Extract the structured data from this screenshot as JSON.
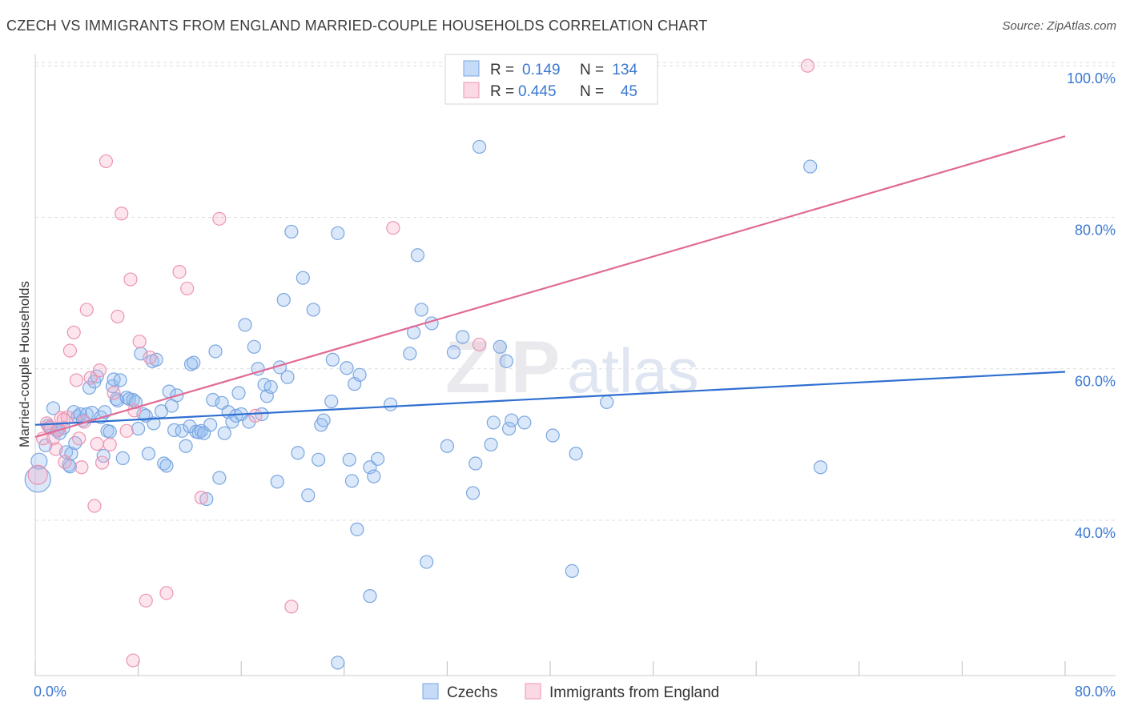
{
  "title": "CZECH VS IMMIGRANTS FROM ENGLAND MARRIED-COUPLE HOUSEHOLDS CORRELATION CHART",
  "source": "Source: ZipAtlas.com",
  "watermark": {
    "bold": "ZIP",
    "light": "atlas"
  },
  "colors": {
    "blue_fill": "rgba(150,190,240,0.35)",
    "blue_stroke": "#7aa6e0",
    "blue_line": "#2f6fd0",
    "pink_fill": "rgba(245,170,195,0.30)",
    "pink_stroke": "#ec94b2",
    "pink_line": "#e06a95",
    "tick_text": "#3b78d0",
    "grid": "#dddddd"
  },
  "chart_data": {
    "type": "scatter",
    "xlabel": "",
    "ylabel": "Married-couple Households",
    "xlim": [
      0,
      80
    ],
    "ylim": [
      19.5,
      101.5
    ],
    "x_tick_labels": [
      "0.0%",
      "80.0%"
    ],
    "y_ticks": [
      40,
      60,
      80,
      100
    ],
    "y_tick_labels": [
      "40.0%",
      "60.0%",
      "80.0%",
      "100.0%"
    ],
    "grid": "horizontal dashed",
    "legend": {
      "placement": "top-center",
      "rows": [
        {
          "r_label": "R =",
          "r_value": "0.149",
          "n_label": "N =",
          "n_value": "134"
        },
        {
          "r_label": "R =",
          "r_value": "0.445",
          "n_label": "N =",
          "n_value": "45"
        }
      ]
    },
    "series": [
      {
        "name": "Czechs",
        "trend": {
          "x": [
            0,
            80
          ],
          "y": [
            52.6,
            59.6
          ]
        },
        "points": [
          [
            0.2,
            45.4,
            16
          ],
          [
            0.3,
            47.8,
            10
          ],
          [
            0.8,
            49.9,
            8
          ],
          [
            1.0,
            52.5,
            8
          ],
          [
            1.2,
            52.2,
            8
          ],
          [
            1.4,
            54.8,
            8
          ],
          [
            1.7,
            51.8,
            8
          ],
          [
            1.9,
            51.5,
            8
          ],
          [
            2.2,
            52.2,
            8
          ],
          [
            2.4,
            49.0,
            8
          ],
          [
            2.6,
            47.3,
            8
          ],
          [
            2.7,
            47.1,
            8
          ],
          [
            2.8,
            48.8,
            8
          ],
          [
            3.0,
            54.3,
            8
          ],
          [
            3.1,
            50.2,
            8
          ],
          [
            3.3,
            53.7,
            8
          ],
          [
            3.5,
            54.0,
            8
          ],
          [
            3.7,
            53.2,
            8
          ],
          [
            4.0,
            54.0,
            8
          ],
          [
            4.2,
            57.5,
            8
          ],
          [
            4.4,
            54.2,
            8
          ],
          [
            4.6,
            58.3,
            8
          ],
          [
            4.8,
            59.0,
            8
          ],
          [
            5.1,
            53.6,
            8
          ],
          [
            5.3,
            48.5,
            8
          ],
          [
            5.4,
            54.3,
            8
          ],
          [
            5.6,
            51.8,
            8
          ],
          [
            5.8,
            51.7,
            8
          ],
          [
            6.0,
            57.7,
            8
          ],
          [
            6.1,
            58.6,
            8
          ],
          [
            6.3,
            56.0,
            8
          ],
          [
            6.4,
            55.8,
            8
          ],
          [
            6.6,
            58.5,
            8
          ],
          [
            6.8,
            48.2,
            8
          ],
          [
            7.1,
            56.2,
            8
          ],
          [
            7.3,
            56.0,
            8
          ],
          [
            7.6,
            55.9,
            8
          ],
          [
            7.8,
            55.6,
            8
          ],
          [
            8.0,
            52.1,
            8
          ],
          [
            8.2,
            62.0,
            8
          ],
          [
            8.4,
            54.0,
            8
          ],
          [
            8.6,
            53.8,
            8
          ],
          [
            8.8,
            48.8,
            8
          ],
          [
            9.1,
            61.0,
            8
          ],
          [
            9.4,
            61.2,
            8
          ],
          [
            9.2,
            52.8,
            8
          ],
          [
            9.8,
            54.4,
            8
          ],
          [
            10.0,
            47.5,
            8
          ],
          [
            10.2,
            47.2,
            8
          ],
          [
            10.4,
            57.0,
            8
          ],
          [
            10.6,
            55.1,
            8
          ],
          [
            10.8,
            51.9,
            8
          ],
          [
            11.0,
            56.5,
            8
          ],
          [
            11.4,
            51.8,
            8
          ],
          [
            11.7,
            49.8,
            8
          ],
          [
            12.0,
            52.4,
            8
          ],
          [
            12.1,
            60.6,
            8
          ],
          [
            12.3,
            60.8,
            8
          ],
          [
            12.5,
            51.7,
            8
          ],
          [
            12.7,
            51.6,
            8
          ],
          [
            12.9,
            51.8,
            8
          ],
          [
            13.1,
            51.5,
            8
          ],
          [
            13.3,
            42.8,
            8
          ],
          [
            13.6,
            52.6,
            8
          ],
          [
            13.8,
            55.9,
            8
          ],
          [
            14.0,
            62.3,
            8
          ],
          [
            14.3,
            45.6,
            8
          ],
          [
            14.5,
            55.5,
            8
          ],
          [
            14.7,
            51.5,
            8
          ],
          [
            15.0,
            54.3,
            8
          ],
          [
            15.3,
            53.0,
            8
          ],
          [
            15.6,
            53.8,
            8
          ],
          [
            15.8,
            56.8,
            8
          ],
          [
            16.0,
            54.0,
            8
          ],
          [
            16.3,
            65.8,
            8
          ],
          [
            16.6,
            53.0,
            8
          ],
          [
            17.0,
            62.9,
            8
          ],
          [
            17.3,
            60.0,
            8
          ],
          [
            17.6,
            54.0,
            8
          ],
          [
            17.8,
            57.9,
            8
          ],
          [
            18.0,
            56.4,
            8
          ],
          [
            18.3,
            57.6,
            8
          ],
          [
            18.8,
            45.1,
            8
          ],
          [
            19.0,
            60.2,
            8
          ],
          [
            19.3,
            69.1,
            8
          ],
          [
            19.6,
            58.9,
            8
          ],
          [
            19.9,
            78.1,
            8
          ],
          [
            20.4,
            48.9,
            8
          ],
          [
            20.8,
            72.0,
            8
          ],
          [
            21.2,
            43.3,
            8
          ],
          [
            21.6,
            67.8,
            8
          ],
          [
            22.0,
            48.0,
            8
          ],
          [
            22.2,
            52.6,
            8
          ],
          [
            22.4,
            53.2,
            8
          ],
          [
            23.0,
            55.7,
            8
          ],
          [
            23.1,
            61.2,
            8
          ],
          [
            23.5,
            77.9,
            8
          ],
          [
            24.2,
            60.1,
            8
          ],
          [
            24.4,
            48.0,
            8
          ],
          [
            24.6,
            45.2,
            8
          ],
          [
            24.8,
            58.0,
            8
          ],
          [
            25.2,
            59.2,
            8
          ],
          [
            25.0,
            38.8,
            8
          ],
          [
            26.0,
            47.0,
            8
          ],
          [
            26.3,
            45.8,
            8
          ],
          [
            26.6,
            48.1,
            8
          ],
          [
            26.0,
            30.0,
            8
          ],
          [
            27.6,
            55.3,
            8
          ],
          [
            29.1,
            62.0,
            8
          ],
          [
            29.4,
            64.8,
            8
          ],
          [
            29.7,
            75.0,
            8
          ],
          [
            30.0,
            67.8,
            8
          ],
          [
            30.4,
            34.5,
            8
          ],
          [
            30.8,
            66.0,
            8
          ],
          [
            32.0,
            49.8,
            8
          ],
          [
            32.5,
            62.2,
            8
          ],
          [
            33.2,
            64.2,
            8
          ],
          [
            34.5,
            89.3,
            8
          ],
          [
            34.2,
            47.5,
            8
          ],
          [
            34.0,
            43.6,
            8
          ],
          [
            35.4,
            50.0,
            8
          ],
          [
            35.6,
            52.9,
            8
          ],
          [
            36.1,
            62.9,
            8
          ],
          [
            36.6,
            61.0,
            8
          ],
          [
            36.8,
            52.1,
            8
          ],
          [
            37.0,
            53.2,
            8
          ],
          [
            38.0,
            52.9,
            8
          ],
          [
            40.2,
            51.2,
            8
          ],
          [
            41.7,
            33.3,
            8
          ],
          [
            42.0,
            48.8,
            8
          ],
          [
            44.4,
            55.6,
            8
          ],
          [
            60.2,
            86.7,
            8
          ],
          [
            61.0,
            47.0,
            8
          ],
          [
            23.5,
            21.2,
            8
          ]
        ]
      },
      {
        "name": "Immigrants from England",
        "trend": {
          "x": [
            0,
            80
          ],
          "y": [
            51.0,
            90.7
          ]
        },
        "points": [
          [
            0.2,
            46.0,
            12
          ],
          [
            0.6,
            50.8,
            8
          ],
          [
            0.9,
            52.8,
            8
          ],
          [
            1.1,
            52.3,
            8
          ],
          [
            1.4,
            50.8,
            8
          ],
          [
            1.6,
            49.4,
            8
          ],
          [
            1.8,
            52.0,
            8
          ],
          [
            2.0,
            53.5,
            8
          ],
          [
            2.3,
            47.7,
            8
          ],
          [
            2.5,
            53.6,
            8
          ],
          [
            2.7,
            62.4,
            8
          ],
          [
            3.0,
            64.8,
            8
          ],
          [
            3.2,
            58.5,
            8
          ],
          [
            3.4,
            50.8,
            8
          ],
          [
            3.6,
            47.0,
            8
          ],
          [
            3.8,
            53.0,
            8
          ],
          [
            4.0,
            67.8,
            8
          ],
          [
            4.3,
            58.8,
            8
          ],
          [
            4.6,
            41.9,
            8
          ],
          [
            4.8,
            50.1,
            8
          ],
          [
            5.0,
            59.8,
            8
          ],
          [
            5.2,
            47.6,
            8
          ],
          [
            5.5,
            87.4,
            8
          ],
          [
            5.8,
            50.0,
            8
          ],
          [
            6.1,
            56.8,
            8
          ],
          [
            6.4,
            66.9,
            8
          ],
          [
            6.7,
            80.5,
            8
          ],
          [
            7.1,
            51.8,
            8
          ],
          [
            7.4,
            71.8,
            8
          ],
          [
            7.7,
            54.5,
            8
          ],
          [
            8.1,
            63.6,
            8
          ],
          [
            8.6,
            29.4,
            8
          ],
          [
            8.9,
            61.5,
            8
          ],
          [
            10.2,
            30.4,
            8
          ],
          [
            11.2,
            72.8,
            8
          ],
          [
            11.8,
            70.6,
            8
          ],
          [
            12.9,
            43.0,
            8
          ],
          [
            14.3,
            79.8,
            8
          ],
          [
            17.1,
            53.8,
            8
          ],
          [
            19.9,
            28.6,
            8
          ],
          [
            27.8,
            78.6,
            8
          ],
          [
            34.5,
            63.2,
            8
          ],
          [
            60.0,
            100.0,
            8
          ],
          [
            7.6,
            21.5,
            8
          ],
          [
            2.2,
            53.3,
            8
          ]
        ]
      }
    ]
  }
}
